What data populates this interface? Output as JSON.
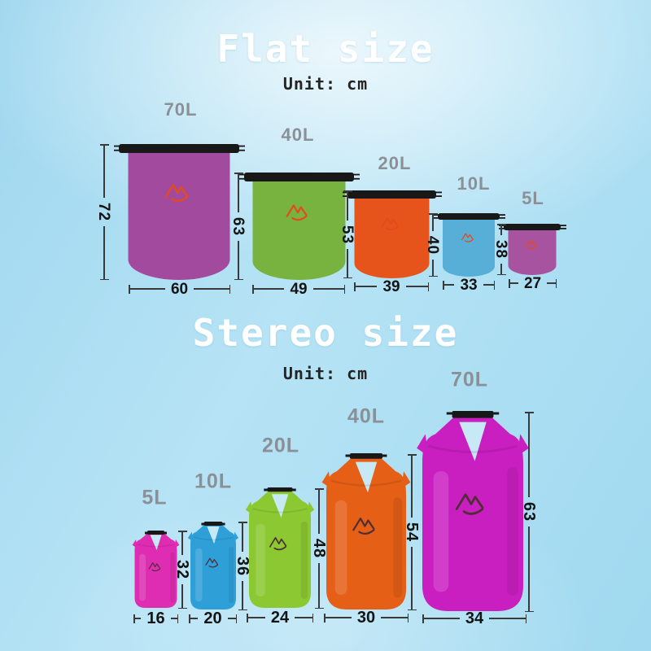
{
  "sections": {
    "flat": {
      "title": "Flat size",
      "unit_label": "Unit: cm",
      "bags": [
        {
          "capacity": "70L",
          "height_cm": "72",
          "width_cm": "60",
          "color": "#a24a9d"
        },
        {
          "capacity": "40L",
          "height_cm": "63",
          "width_cm": "49",
          "color": "#79b33f"
        },
        {
          "capacity": "20L",
          "height_cm": "53",
          "width_cm": "39",
          "color": "#e7541b"
        },
        {
          "capacity": "10L",
          "height_cm": "40",
          "width_cm": "33",
          "color": "#57afd7"
        },
        {
          "capacity": "5L",
          "height_cm": "38",
          "width_cm": "27",
          "color": "#a8539f"
        }
      ]
    },
    "stereo": {
      "title": "Stereo size",
      "unit_label": "Unit: cm",
      "bags": [
        {
          "capacity": "5L",
          "height_cm": "32",
          "width_cm": "16",
          "color": "#de2db2"
        },
        {
          "capacity": "10L",
          "height_cm": "36",
          "width_cm": "20",
          "color": "#2f9fd8"
        },
        {
          "capacity": "20L",
          "height_cm": "48",
          "width_cm": "24",
          "color": "#8bc832"
        },
        {
          "capacity": "40L",
          "height_cm": "54",
          "width_cm": "30",
          "color": "#e55f17"
        },
        {
          "capacity": "70L",
          "height_cm": "63",
          "width_cm": "34",
          "color": "#ca1fc0"
        }
      ]
    }
  },
  "icons": {
    "brand_logo": "mountain-logo"
  },
  "palette": {
    "background_blue": "#a9ddf2",
    "closure_black": "#181818",
    "dimension_line": "#3a3a3a",
    "dimension_text": "#141414",
    "capacity_label_gray": "#8a9096",
    "title_white": "#ffffff",
    "flat_logo_orange": "#e34a1f",
    "stereo_logo_dark": "#4f2e35",
    "hole_light_blue": "#c7e9f6"
  }
}
